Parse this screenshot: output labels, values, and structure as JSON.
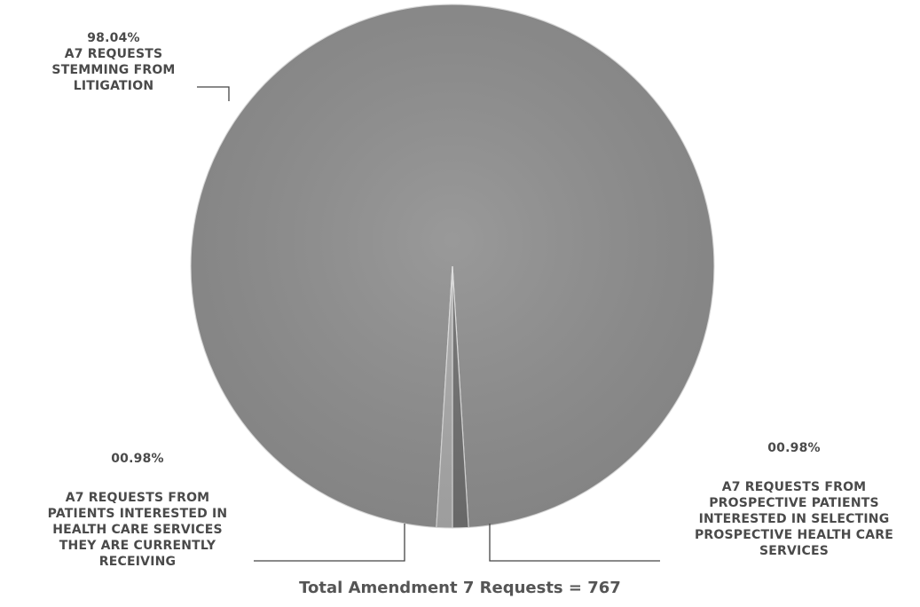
{
  "chart_data": {
    "type": "pie",
    "title": "",
    "slices": [
      {
        "label": "A7 REQUESTS STEMMING FROM LITIGATION",
        "percent_label": "98.04%",
        "value": 98.04,
        "color": "#8e8e8e"
      },
      {
        "label": "A7 REQUESTS FROM PROSPECTIVE PATIENTS INTERESTED IN SELECTING PROSPECTIVE HEALTH CARE SERVICES",
        "percent_label": "00.98%",
        "value": 0.98,
        "color": "#a9a9a9"
      },
      {
        "label": "A7 REQUESTS FROM PATIENTS INTERESTED IN HEALTH CARE SERVICES THEY ARE CURRENTLY RECEIVING",
        "percent_label": "00.98%",
        "value": 0.98,
        "color": "#6f6f6f"
      }
    ],
    "legend": "none",
    "caption": "Total Amendment 7 Requests = 767"
  }
}
